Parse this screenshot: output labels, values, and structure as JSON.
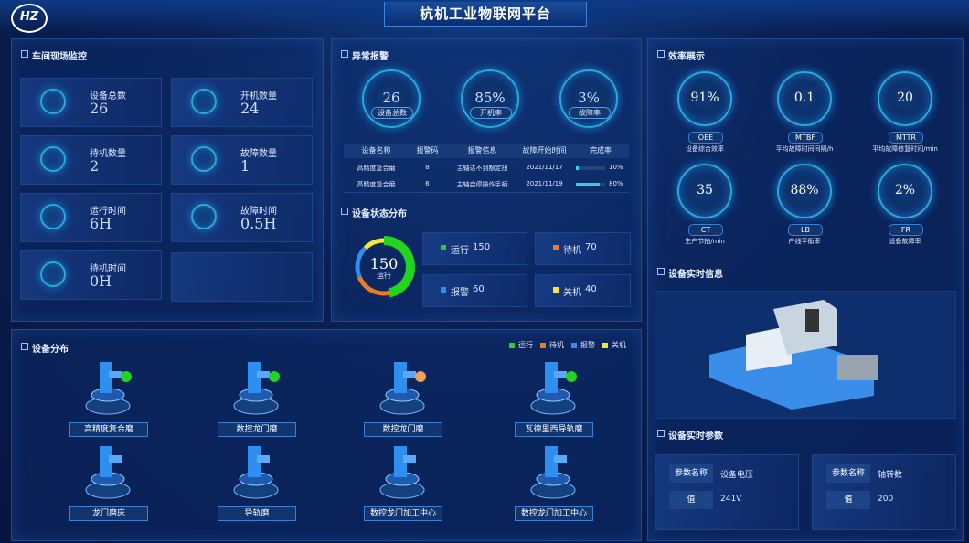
{
  "header": {
    "logo": "HZ",
    "title": "杭机工业物联网平台"
  },
  "workshop": {
    "title": "车间现场监控",
    "items": [
      {
        "label": "设备总数",
        "value": 26
      },
      {
        "label": "开机数量",
        "value": 24
      },
      {
        "label": "待机数量",
        "value": 2
      },
      {
        "label": "故障数量",
        "value": 1
      },
      {
        "label": "运行时间",
        "value": "6H"
      },
      {
        "label": "故障时间",
        "value": "0.5H"
      },
      {
        "label": "待机时间",
        "value": "0H"
      }
    ]
  },
  "alarms": {
    "title": "异常报警",
    "gauges": [
      {
        "value": 26,
        "label": "设备总数"
      },
      {
        "value": "85%",
        "label": "开机率"
      },
      {
        "value": "3%",
        "label": "故障率"
      }
    ],
    "table": {
      "columns": [
        "设备名称",
        "报警码",
        "报警信息",
        "故障开始时间",
        "完成率"
      ],
      "rows": [
        [
          "高精度复合磨",
          8,
          "主轴达不到额定扭",
          "2021/11/17",
          {
            "value": 10,
            "label": "10%"
          }
        ],
        [
          "高精度复合磨",
          6,
          "主轴启停操作手柄",
          "2021/11/19",
          {
            "value": 80,
            "label": "80%"
          }
        ]
      ]
    }
  },
  "status": {
    "title": "设备状态分布",
    "series": [
      {
        "name": "运行",
        "value": 150,
        "color": "#22d41e"
      },
      {
        "name": "待机",
        "value": 70,
        "color": "#f07a22"
      },
      {
        "name": "报警",
        "value": 60,
        "color": "#2f8ff0"
      },
      {
        "name": "关机",
        "value": 40,
        "color": "#f5e63a"
      }
    ]
  },
  "distribution": {
    "title": "设备分布",
    "machines": [
      {
        "name": "高精度复合磨",
        "color": "#22d41e"
      },
      {
        "name": "数控龙门磨",
        "color": "#22d41e"
      },
      {
        "name": "数控龙门磨",
        "color": "#f0a050"
      },
      {
        "name": "瓦德里西导轨磨",
        "color": "#22d41e"
      },
      {
        "name": "龙门磨床"
      },
      {
        "name": "导轨磨"
      },
      {
        "name": "数控龙门加工中心"
      },
      {
        "name": "数控龙门加工中心"
      }
    ]
  },
  "efficiency": {
    "title": "效率展示",
    "metrics": [
      {
        "value": "91%",
        "code": "OEE",
        "label": "设备综合效率"
      },
      {
        "value": "0.1",
        "code": "MTBF",
        "label": "平均故障时间间隔/h"
      },
      {
        "value": "20",
        "code": "MTTR",
        "label": "平均故障修复时间/min"
      },
      {
        "value": "35",
        "code": "CT",
        "label": "生产节拍/min"
      },
      {
        "value": "88%",
        "code": "LB",
        "label": "产线平衡率"
      },
      {
        "value": "2%",
        "code": "FR",
        "label": "设备故障率"
      }
    ]
  },
  "realtime_info": {
    "title": "设备实时信息"
  },
  "realtime_params": {
    "title": "设备实时参数",
    "cards": [
      [
        [
          "参数名称",
          "设备电压"
        ],
        [
          "值",
          "241V"
        ]
      ],
      [
        [
          "参数名称",
          "轴转数"
        ],
        [
          "值",
          200
        ]
      ]
    ]
  }
}
